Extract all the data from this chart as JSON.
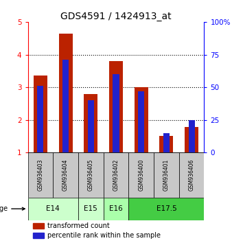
{
  "title": "GDS4591 / 1424913_at",
  "samples": [
    "GSM936403",
    "GSM936404",
    "GSM936405",
    "GSM936402",
    "GSM936400",
    "GSM936401",
    "GSM936406"
  ],
  "transformed_count": [
    3.35,
    4.65,
    2.8,
    3.8,
    3.0,
    1.52,
    1.78
  ],
  "percentile_rank_pct": [
    51,
    71,
    40,
    60,
    47,
    15,
    25
  ],
  "age_groups": [
    {
      "label": "E14",
      "start": 0,
      "end": 1,
      "color": "#ccffcc"
    },
    {
      "label": "E15",
      "start": 2,
      "end": 2,
      "color": "#ccffcc"
    },
    {
      "label": "E16",
      "start": 3,
      "end": 3,
      "color": "#aaffaa"
    },
    {
      "label": "E17.5",
      "start": 4,
      "end": 6,
      "color": "#44cc44"
    }
  ],
  "ylim_left": [
    1,
    5
  ],
  "ylim_right": [
    0,
    100
  ],
  "yticks_left": [
    1,
    2,
    3,
    4,
    5
  ],
  "yticks_right": [
    0,
    25,
    50,
    75,
    100
  ],
  "bar_color_red": "#bb2200",
  "bar_color_blue": "#2222cc",
  "sample_bg_color": "#c8c8c8",
  "title_fontsize": 10,
  "tick_fontsize": 7.5,
  "legend_fontsize": 7
}
